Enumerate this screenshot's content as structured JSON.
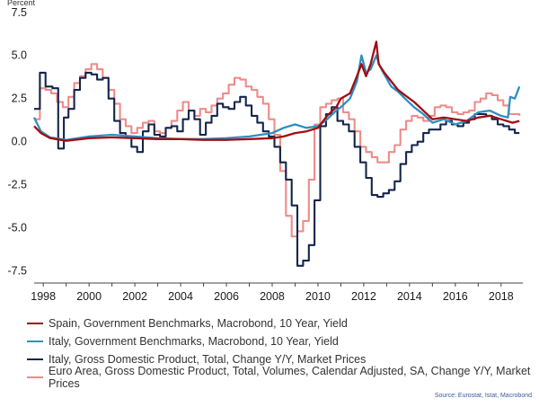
{
  "chart_data": {
    "type": "line",
    "ylabel": "Percent",
    "ylim": [
      -8.2,
      7.8
    ],
    "xlim": [
      1997.6,
      2018.95
    ],
    "yticks": [
      "7.5",
      "5.0",
      "2.5",
      "0.0",
      "-2.5",
      "-5.0",
      "-7.5"
    ],
    "xticks": [
      "1998",
      "2000",
      "2002",
      "2004",
      "2006",
      "2008",
      "2010",
      "2012",
      "2014",
      "2016",
      "2018"
    ],
    "gridlines": false,
    "legend_position": "bottom",
    "source": "Source: Eurostat, Istat, Macrobond",
    "series": [
      {
        "name": "Spain, Government Benchmarks, Macrobond, 10 Year, Yield",
        "color": "#a00e12",
        "step": false,
        "points": [
          [
            1997.6,
            0.9
          ],
          [
            1997.9,
            0.5
          ],
          [
            1998.3,
            0.2
          ],
          [
            1999,
            0.05
          ],
          [
            2000,
            0.2
          ],
          [
            2001,
            0.25
          ],
          [
            2002,
            0.2
          ],
          [
            2003,
            0.15
          ],
          [
            2004,
            0.15
          ],
          [
            2005,
            0.1
          ],
          [
            2006,
            0.1
          ],
          [
            2007,
            0.15
          ],
          [
            2008,
            0.2
          ],
          [
            2008.5,
            0.3
          ],
          [
            2009,
            0.5
          ],
          [
            2009.5,
            0.6
          ],
          [
            2010,
            0.8
          ],
          [
            2010.4,
            1.5
          ],
          [
            2010.8,
            2.0
          ],
          [
            2011,
            2.5
          ],
          [
            2011.4,
            2.8
          ],
          [
            2011.7,
            3.8
          ],
          [
            2011.9,
            4.5
          ],
          [
            2012.1,
            3.8
          ],
          [
            2012.3,
            4.5
          ],
          [
            2012.55,
            5.8
          ],
          [
            2012.65,
            4.5
          ],
          [
            2012.9,
            4.0
          ],
          [
            2013.2,
            3.5
          ],
          [
            2013.5,
            3.0
          ],
          [
            2013.8,
            2.7
          ],
          [
            2014.2,
            2.3
          ],
          [
            2014.6,
            1.8
          ],
          [
            2015,
            1.3
          ],
          [
            2015.5,
            1.4
          ],
          [
            2016,
            1.3
          ],
          [
            2016.5,
            1.2
          ],
          [
            2017,
            1.4
          ],
          [
            2017.5,
            1.5
          ],
          [
            2018,
            1.3
          ],
          [
            2018.5,
            1.1
          ],
          [
            2018.8,
            1.2
          ]
        ]
      },
      {
        "name": "Italy, Government Benchmarks, Macrobond, 10 Year, Yield",
        "color": "#2f8ec3",
        "step": false,
        "points": [
          [
            1997.6,
            1.4
          ],
          [
            1997.9,
            0.6
          ],
          [
            1998.3,
            0.25
          ],
          [
            1999,
            0.1
          ],
          [
            2000,
            0.3
          ],
          [
            2001,
            0.4
          ],
          [
            2002,
            0.3
          ],
          [
            2003,
            0.2
          ],
          [
            2004,
            0.15
          ],
          [
            2005,
            0.15
          ],
          [
            2006,
            0.2
          ],
          [
            2007,
            0.3
          ],
          [
            2008,
            0.5
          ],
          [
            2008.5,
            0.8
          ],
          [
            2009,
            1.0
          ],
          [
            2009.5,
            0.8
          ],
          [
            2010,
            0.9
          ],
          [
            2010.4,
            1.3
          ],
          [
            2010.8,
            1.8
          ],
          [
            2011,
            2.0
          ],
          [
            2011.4,
            2.5
          ],
          [
            2011.7,
            3.5
          ],
          [
            2011.9,
            5.0
          ],
          [
            2012.1,
            4.0
          ],
          [
            2012.3,
            4.2
          ],
          [
            2012.55,
            5.0
          ],
          [
            2012.7,
            4.4
          ],
          [
            2012.9,
            3.9
          ],
          [
            2013.2,
            3.2
          ],
          [
            2013.5,
            2.9
          ],
          [
            2013.8,
            2.5
          ],
          [
            2014.2,
            2.0
          ],
          [
            2014.6,
            1.6
          ],
          [
            2015,
            1.1
          ],
          [
            2015.5,
            1.3
          ],
          [
            2016,
            1.0
          ],
          [
            2016.5,
            1.2
          ],
          [
            2017,
            1.7
          ],
          [
            2017.5,
            1.8
          ],
          [
            2018,
            1.5
          ],
          [
            2018.3,
            1.4
          ],
          [
            2018.4,
            2.6
          ],
          [
            2018.6,
            2.5
          ],
          [
            2018.8,
            3.2
          ]
        ]
      },
      {
        "name": "Italy, Gross Domestic Product, Total, Change Y/Y, Market Prices",
        "color": "#14254a",
        "step": true,
        "points": [
          [
            1997.6,
            1.9
          ],
          [
            1997.85,
            4.0
          ],
          [
            1998.1,
            3.2
          ],
          [
            1998.4,
            3.1
          ],
          [
            1998.65,
            -0.4
          ],
          [
            1998.9,
            1.4
          ],
          [
            1999.1,
            1.9
          ],
          [
            1999.35,
            3.0
          ],
          [
            1999.6,
            3.7
          ],
          [
            1999.85,
            4.0
          ],
          [
            2000.1,
            3.9
          ],
          [
            2000.35,
            3.6
          ],
          [
            2000.6,
            3.7
          ],
          [
            2000.85,
            2.5
          ],
          [
            2001.1,
            1.2
          ],
          [
            2001.35,
            0.5
          ],
          [
            2001.6,
            0.3
          ],
          [
            2001.85,
            -0.3
          ],
          [
            2002.1,
            -0.6
          ],
          [
            2002.35,
            0.6
          ],
          [
            2002.6,
            1.0
          ],
          [
            2002.85,
            0.4
          ],
          [
            2003.1,
            0.3
          ],
          [
            2003.35,
            0.8
          ],
          [
            2003.6,
            0.9
          ],
          [
            2003.85,
            0.6
          ],
          [
            2004.1,
            1.3
          ],
          [
            2004.35,
            1.8
          ],
          [
            2004.6,
            1.3
          ],
          [
            2004.85,
            0.4
          ],
          [
            2005.1,
            1.1
          ],
          [
            2005.35,
            1.5
          ],
          [
            2005.6,
            2.2
          ],
          [
            2005.85,
            2.0
          ],
          [
            2006.1,
            1.9
          ],
          [
            2006.35,
            2.3
          ],
          [
            2006.6,
            2.6
          ],
          [
            2006.85,
            2.1
          ],
          [
            2007.1,
            1.5
          ],
          [
            2007.35,
            1.1
          ],
          [
            2007.6,
            0.6
          ],
          [
            2007.85,
            0.3
          ],
          [
            2008.1,
            -0.3
          ],
          [
            2008.35,
            -1.2
          ],
          [
            2008.6,
            -2.2
          ],
          [
            2008.85,
            -3.7
          ],
          [
            2009.1,
            -7.2
          ],
          [
            2009.35,
            -6.9
          ],
          [
            2009.6,
            -6.0
          ],
          [
            2009.85,
            -3.4
          ],
          [
            2010.1,
            0.9
          ],
          [
            2010.35,
            1.6
          ],
          [
            2010.6,
            2.0
          ],
          [
            2010.85,
            1.2
          ],
          [
            2011.1,
            1.0
          ],
          [
            2011.35,
            0.6
          ],
          [
            2011.6,
            -0.3
          ],
          [
            2011.85,
            -1.2
          ],
          [
            2012.1,
            -2.1
          ],
          [
            2012.35,
            -3.1
          ],
          [
            2012.6,
            -3.2
          ],
          [
            2012.85,
            -3.0
          ],
          [
            2013.1,
            -2.8
          ],
          [
            2013.35,
            -2.3
          ],
          [
            2013.6,
            -1.3
          ],
          [
            2013.85,
            -0.6
          ],
          [
            2014.1,
            -0.2
          ],
          [
            2014.35,
            0.0
          ],
          [
            2014.6,
            0.5
          ],
          [
            2014.85,
            0.7
          ],
          [
            2015.1,
            0.7
          ],
          [
            2015.35,
            1.0
          ],
          [
            2015.6,
            1.2
          ],
          [
            2015.85,
            1.0
          ],
          [
            2016.1,
            0.9
          ],
          [
            2016.35,
            1.1
          ],
          [
            2016.6,
            1.3
          ],
          [
            2016.85,
            1.6
          ],
          [
            2017.1,
            1.6
          ],
          [
            2017.35,
            1.5
          ],
          [
            2017.6,
            1.3
          ],
          [
            2017.85,
            1.0
          ],
          [
            2018.1,
            0.9
          ],
          [
            2018.35,
            0.7
          ],
          [
            2018.6,
            0.5
          ],
          [
            2018.8,
            0.5
          ]
        ]
      },
      {
        "name": "Euro Area, Gross Domestic Product, Total, Volumes, Calendar Adjusted, SA, Change Y/Y, Market Prices",
        "color": "#ee8b8b",
        "step": true,
        "points": [
          [
            1997.6,
            1.3
          ],
          [
            1997.85,
            3.1
          ],
          [
            1998.1,
            3.0
          ],
          [
            1998.35,
            2.8
          ],
          [
            1998.6,
            2.3
          ],
          [
            1998.85,
            2.0
          ],
          [
            1999.1,
            2.6
          ],
          [
            1999.35,
            3.4
          ],
          [
            1999.6,
            3.8
          ],
          [
            1999.85,
            4.2
          ],
          [
            2000.1,
            4.5
          ],
          [
            2000.35,
            4.2
          ],
          [
            2000.6,
            3.7
          ],
          [
            2000.85,
            3.0
          ],
          [
            2001.1,
            2.2
          ],
          [
            2001.35,
            1.3
          ],
          [
            2001.6,
            0.9
          ],
          [
            2001.85,
            0.5
          ],
          [
            2002.1,
            0.8
          ],
          [
            2002.35,
            1.1
          ],
          [
            2002.6,
            1.2
          ],
          [
            2002.85,
            0.6
          ],
          [
            2003.1,
            0.5
          ],
          [
            2003.35,
            0.8
          ],
          [
            2003.6,
            1.2
          ],
          [
            2003.85,
            1.8
          ],
          [
            2004.1,
            2.3
          ],
          [
            2004.35,
            1.8
          ],
          [
            2004.6,
            1.5
          ],
          [
            2004.85,
            1.9
          ],
          [
            2005.1,
            1.7
          ],
          [
            2005.35,
            2.1
          ],
          [
            2005.6,
            2.5
          ],
          [
            2005.85,
            2.8
          ],
          [
            2006.1,
            3.3
          ],
          [
            2006.35,
            3.7
          ],
          [
            2006.6,
            3.6
          ],
          [
            2006.85,
            3.2
          ],
          [
            2007.1,
            3.0
          ],
          [
            2007.35,
            2.6
          ],
          [
            2007.6,
            2.2
          ],
          [
            2007.85,
            1.3
          ],
          [
            2008.1,
            0.4
          ],
          [
            2008.35,
            -1.7
          ],
          [
            2008.6,
            -4.3
          ],
          [
            2008.85,
            -5.5
          ],
          [
            2009.1,
            -5.2
          ],
          [
            2009.35,
            -4.6
          ],
          [
            2009.6,
            -2.2
          ],
          [
            2009.85,
            1.0
          ],
          [
            2010.1,
            2.0
          ],
          [
            2010.35,
            2.2
          ],
          [
            2010.6,
            2.4
          ],
          [
            2010.85,
            2.5
          ],
          [
            2011.1,
            1.7
          ],
          [
            2011.35,
            1.3
          ],
          [
            2011.6,
            0.6
          ],
          [
            2011.85,
            -0.3
          ],
          [
            2012.1,
            -0.6
          ],
          [
            2012.35,
            -0.9
          ],
          [
            2012.6,
            -1.2
          ],
          [
            2012.85,
            -1.2
          ],
          [
            2013.1,
            -0.6
          ],
          [
            2013.35,
            -0.2
          ],
          [
            2013.6,
            0.7
          ],
          [
            2013.85,
            1.2
          ],
          [
            2014.1,
            1.5
          ],
          [
            2014.35,
            1.4
          ],
          [
            2014.6,
            1.2
          ],
          [
            2014.85,
            1.5
          ],
          [
            2015.1,
            2.0
          ],
          [
            2015.35,
            2.1
          ],
          [
            2015.6,
            2.0
          ],
          [
            2015.85,
            1.7
          ],
          [
            2016.1,
            1.6
          ],
          [
            2016.35,
            1.7
          ],
          [
            2016.6,
            1.8
          ],
          [
            2016.85,
            2.3
          ],
          [
            2017.1,
            2.5
          ],
          [
            2017.35,
            2.8
          ],
          [
            2017.6,
            2.7
          ],
          [
            2017.85,
            2.4
          ],
          [
            2018.1,
            2.1
          ],
          [
            2018.35,
            1.6
          ],
          [
            2018.6,
            1.6
          ],
          [
            2018.8,
            1.5
          ]
        ]
      }
    ]
  }
}
